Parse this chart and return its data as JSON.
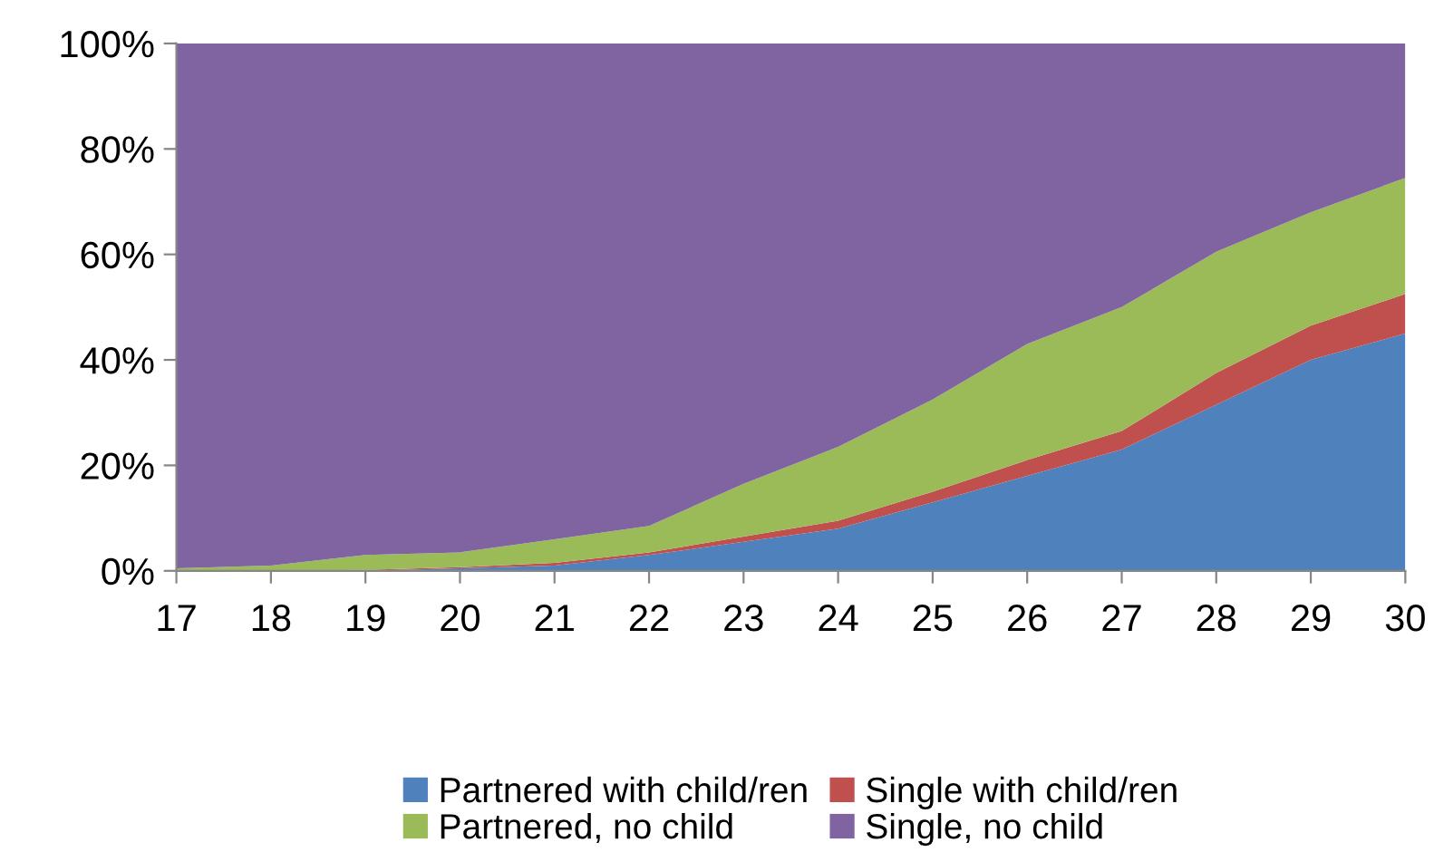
{
  "chart_data": {
    "type": "area",
    "stacked": true,
    "x": [
      17,
      18,
      19,
      20,
      21,
      22,
      23,
      24,
      25,
      26,
      27,
      28,
      29,
      30
    ],
    "series": [
      {
        "name": "Partnered with child/ren",
        "color": "#4f81bd",
        "values": [
          0,
          0,
          0,
          0.5,
          1,
          3,
          5.5,
          8,
          13,
          18,
          23,
          31.5,
          40,
          45
        ]
      },
      {
        "name": "Single with child/ren",
        "color": "#c0504d",
        "values": [
          0,
          0,
          0.2,
          0.2,
          0.5,
          0.5,
          1,
          1.5,
          2,
          3,
          3.5,
          6,
          6.5,
          7.5
        ]
      },
      {
        "name": "Partnered, no child",
        "color": "#9bbb59",
        "values": [
          0.5,
          1,
          2.8,
          2.8,
          4.5,
          5,
          10,
          14,
          17.5,
          22,
          23.5,
          23,
          21.5,
          22
        ]
      },
      {
        "name": "Single, no child",
        "color": "#8064a2",
        "values": [
          99.5,
          99,
          97,
          96.5,
          94,
          91.5,
          83.5,
          76.5,
          67.5,
          57,
          50,
          39.5,
          32,
          25.5
        ]
      }
    ],
    "xlim": [
      17,
      30
    ],
    "xticks": [
      17,
      18,
      19,
      20,
      21,
      22,
      23,
      24,
      25,
      26,
      27,
      28,
      29,
      30
    ],
    "ylim": [
      0,
      100
    ],
    "yticks": [
      {
        "value": 0,
        "label": "0%"
      },
      {
        "value": 20,
        "label": "20%"
      },
      {
        "value": 40,
        "label": "40%"
      },
      {
        "value": 60,
        "label": "60%"
      },
      {
        "value": 80,
        "label": "80%"
      },
      {
        "value": 100,
        "label": "100%"
      }
    ],
    "grid": false,
    "legend": "bottom"
  }
}
